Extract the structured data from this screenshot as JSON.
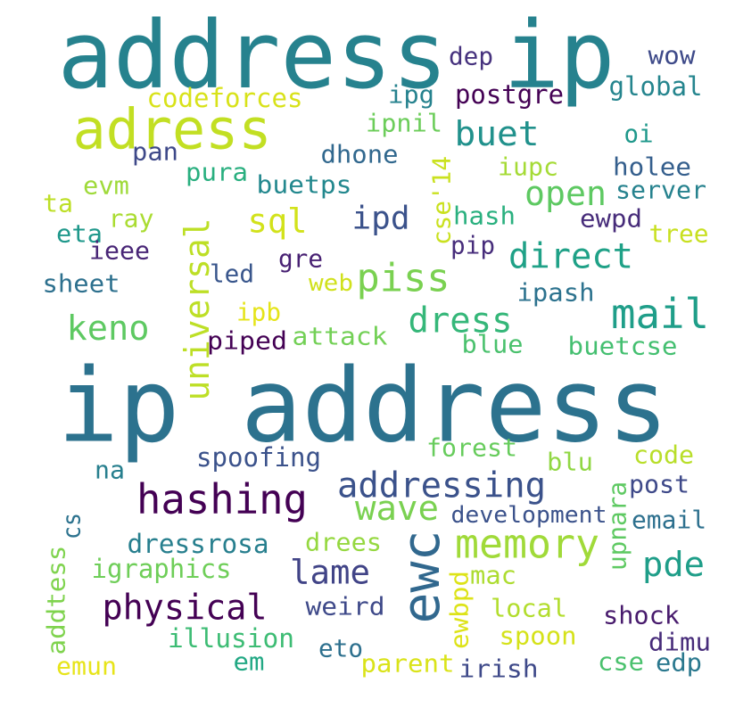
{
  "words": [
    {
      "text": "address ip",
      "color": "#26828e"
    },
    {
      "text": "ip address",
      "color": "#2c728e"
    },
    {
      "text": "adress",
      "color": "#c2df23"
    },
    {
      "text": "hashing",
      "color": "#440154"
    },
    {
      "text": "ewc",
      "color": "#31688e"
    },
    {
      "text": "memory",
      "color": "#a0da39"
    },
    {
      "text": "universal",
      "color": "#bddf26"
    },
    {
      "text": "piss",
      "color": "#7ad151"
    },
    {
      "text": "mail",
      "color": "#1f9e89"
    },
    {
      "text": "physical",
      "color": "#440154"
    },
    {
      "text": "addressing",
      "color": "#3b528b"
    },
    {
      "text": "direct",
      "color": "#1fa187"
    },
    {
      "text": "open",
      "color": "#5ec962"
    },
    {
      "text": "buet",
      "color": "#21918c"
    },
    {
      "text": "dress",
      "color": "#35b779"
    },
    {
      "text": "wave",
      "color": "#7ad151"
    },
    {
      "text": "lame",
      "color": "#414487"
    },
    {
      "text": "pde",
      "color": "#1f9e89"
    },
    {
      "text": "keno",
      "color": "#5ec962"
    },
    {
      "text": "sql",
      "color": "#d2e21b"
    },
    {
      "text": "ipd",
      "color": "#3b528b"
    },
    {
      "text": "codeforces",
      "color": "#d8e219"
    },
    {
      "text": "dep",
      "color": "#46327e"
    },
    {
      "text": "wow",
      "color": "#3e4a89"
    },
    {
      "text": "global",
      "color": "#25858e"
    },
    {
      "text": "postgre",
      "color": "#440154"
    },
    {
      "text": "ipg",
      "color": "#26828e"
    },
    {
      "text": "ipnil",
      "color": "#6ccd5a"
    },
    {
      "text": "pan",
      "color": "#3e4989"
    },
    {
      "text": "dhone",
      "color": "#31688e"
    },
    {
      "text": "oi",
      "color": "#1f988b"
    },
    {
      "text": "iupc",
      "color": "#a5db36"
    },
    {
      "text": "holee",
      "color": "#355f8d"
    },
    {
      "text": "pura",
      "color": "#29af7f"
    },
    {
      "text": "buetps",
      "color": "#23888e"
    },
    {
      "text": "evm",
      "color": "#9fda3a"
    },
    {
      "text": "server",
      "color": "#26828e"
    },
    {
      "text": "cse'14",
      "color": "#cae11f"
    },
    {
      "text": "ta",
      "color": "#bddf26"
    },
    {
      "text": "hash",
      "color": "#2ab07f"
    },
    {
      "text": "ewpd",
      "color": "#472c7a"
    },
    {
      "text": "ray",
      "color": "#aadc32"
    },
    {
      "text": "eta",
      "color": "#1f988b"
    },
    {
      "text": "tree",
      "color": "#c8e020"
    },
    {
      "text": "pip",
      "color": "#472d7b"
    },
    {
      "text": "ieee",
      "color": "#482576"
    },
    {
      "text": "gre",
      "color": "#482173"
    },
    {
      "text": "led",
      "color": "#39568c"
    },
    {
      "text": "sheet",
      "color": "#2d708e"
    },
    {
      "text": "web",
      "color": "#d0e11c"
    },
    {
      "text": "ipash",
      "color": "#2c728e"
    },
    {
      "text": "ipb",
      "color": "#e5e419"
    },
    {
      "text": "piped",
      "color": "#440154"
    },
    {
      "text": "attack",
      "color": "#73d056"
    },
    {
      "text": "blue",
      "color": "#4ac16d"
    },
    {
      "text": "buetcse",
      "color": "#44bf70"
    },
    {
      "text": "forest",
      "color": "#67cc5c"
    },
    {
      "text": "spoofing",
      "color": "#3b528b"
    },
    {
      "text": "code",
      "color": "#b8de29"
    },
    {
      "text": "blu",
      "color": "#90d743"
    },
    {
      "text": "na",
      "color": "#277f8e"
    },
    {
      "text": "post",
      "color": "#3e4989"
    },
    {
      "text": "upnara",
      "color": "#5ec962"
    },
    {
      "text": "development",
      "color": "#3b528b"
    },
    {
      "text": "email",
      "color": "#2d708e"
    },
    {
      "text": "cs",
      "color": "#2c728e"
    },
    {
      "text": "dressrosa",
      "color": "#277f8e"
    },
    {
      "text": "drees",
      "color": "#95d840"
    },
    {
      "text": "igraphics",
      "color": "#6ece58"
    },
    {
      "text": "mac",
      "color": "#addc30"
    },
    {
      "text": "ewbpd",
      "color": "#dde318"
    },
    {
      "text": "addtess",
      "color": "#7fd34e"
    },
    {
      "text": "weird",
      "color": "#3e4989"
    },
    {
      "text": "local",
      "color": "#b2dd2d"
    },
    {
      "text": "shock",
      "color": "#481b6d"
    },
    {
      "text": "illusion",
      "color": "#3dbc74"
    },
    {
      "text": "spoon",
      "color": "#d5e21a"
    },
    {
      "text": "dimu",
      "color": "#472c7a"
    },
    {
      "text": "eto",
      "color": "#2d708e"
    },
    {
      "text": "emun",
      "color": "#e7e419"
    },
    {
      "text": "em",
      "color": "#22a884"
    },
    {
      "text": "parent",
      "color": "#dae319"
    },
    {
      "text": "irish",
      "color": "#3e4989"
    },
    {
      "text": "cse",
      "color": "#4ac16d"
    },
    {
      "text": "edp",
      "color": "#2a788e"
    }
  ]
}
